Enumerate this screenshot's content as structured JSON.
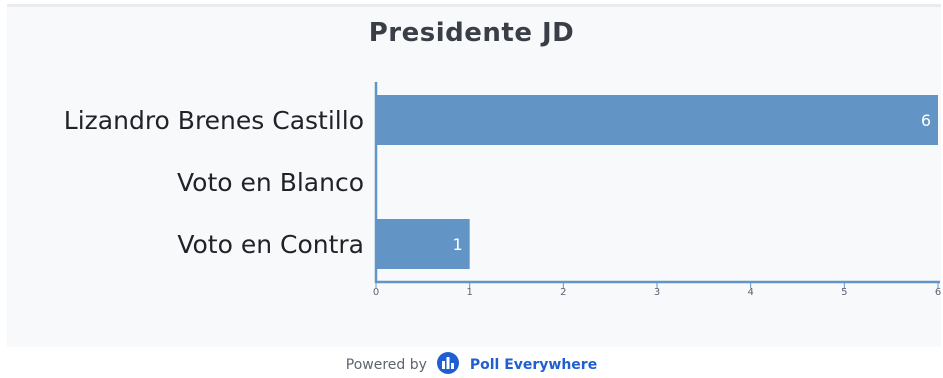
{
  "chart_data": {
    "type": "bar",
    "orientation": "horizontal",
    "title": "Presidente JD",
    "categories": [
      "Lizandro Brenes Castillo",
      "Voto en Blanco",
      "Voto en Contra"
    ],
    "values": [
      6,
      0,
      1
    ],
    "value_labels": [
      "6",
      "",
      "1"
    ],
    "xlim": [
      0,
      6
    ],
    "xticks": [
      "0",
      "1",
      "2",
      "3",
      "4",
      "5",
      "6"
    ],
    "grid": false,
    "bar_color": "#6394c6",
    "axis_color": "#6394c6"
  },
  "footer": {
    "powered_by": "Powered by",
    "brand": "Poll Everywhere",
    "brand_color": "#1f5fd0"
  }
}
